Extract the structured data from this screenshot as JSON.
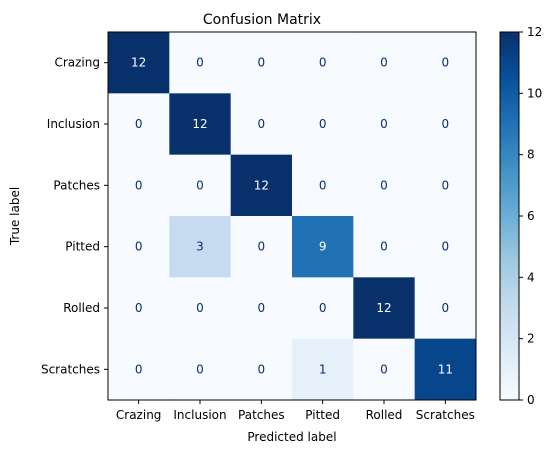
{
  "chart_data": {
    "type": "heatmap",
    "title": "Confusion Matrix",
    "xlabel": "Predicted label",
    "ylabel": "True label",
    "x_categories": [
      "Crazing",
      "Inclusion",
      "Patches",
      "Pitted",
      "Rolled",
      "Scratches"
    ],
    "y_categories": [
      "Crazing",
      "Inclusion",
      "Patches",
      "Pitted",
      "Rolled",
      "Scratches"
    ],
    "values": [
      [
        12,
        0,
        0,
        0,
        0,
        0
      ],
      [
        0,
        12,
        0,
        0,
        0,
        0
      ],
      [
        0,
        0,
        12,
        0,
        0,
        0
      ],
      [
        0,
        3,
        0,
        9,
        0,
        0
      ],
      [
        0,
        0,
        0,
        0,
        12,
        0
      ],
      [
        0,
        0,
        0,
        1,
        0,
        11
      ]
    ],
    "colormap": "Blues",
    "colorbar": {
      "range": [
        0,
        12
      ],
      "ticks": [
        0,
        2,
        4,
        6,
        8,
        10,
        12
      ]
    }
  }
}
